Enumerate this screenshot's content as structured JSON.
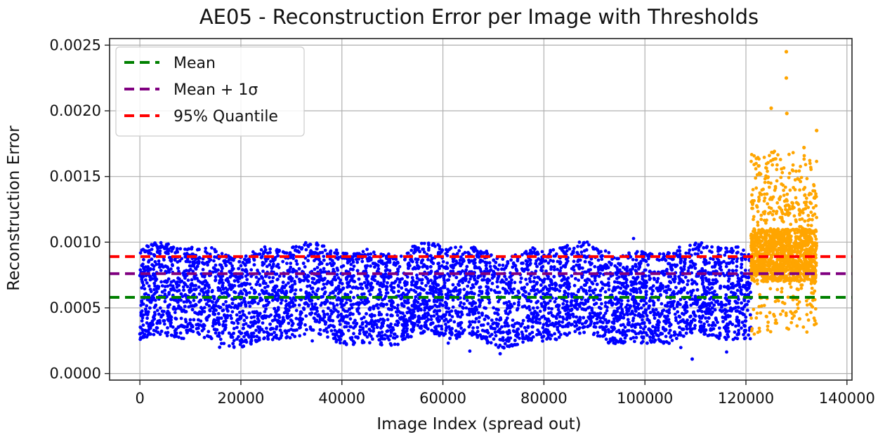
{
  "chart_data": {
    "type": "scatter",
    "title": "AE05 - Reconstruction Error per Image with Thresholds",
    "xlabel": "Image Index (spread out)",
    "ylabel": "Reconstruction Error",
    "xlim": [
      -6000,
      141000
    ],
    "ylim": [
      -5e-05,
      0.00255
    ],
    "x_ticks": [
      0,
      20000,
      40000,
      60000,
      80000,
      100000,
      120000,
      140000
    ],
    "x_tick_labels": [
      "0",
      "20000",
      "40000",
      "60000",
      "80000",
      "100000",
      "120000",
      "140000"
    ],
    "y_ticks": [
      0.0,
      0.0005,
      0.001,
      0.0015,
      0.002,
      0.0025
    ],
    "y_tick_labels": [
      "0.0000",
      "0.0005",
      "0.0010",
      "0.0015",
      "0.0020",
      "0.0025"
    ],
    "grid": true,
    "legend_position": "top-left",
    "series": [
      {
        "name": "",
        "color": "#0000ff",
        "x_range": [
          0,
          121000
        ],
        "y_center": 0.00058,
        "y_typical_range": [
          0.00025,
          0.00095
        ],
        "y_min": 0.00011,
        "y_max": 0.00104
      },
      {
        "name": "",
        "color": "#ffa500",
        "x_range": [
          121000,
          134000
        ],
        "y_center": 0.00085,
        "y_typical_range": [
          0.0003,
          0.0014
        ],
        "y_min": 0.00025,
        "y_max": 0.00245,
        "sample_points": [
          {
            "x": 128000,
            "y": 0.00245
          },
          {
            "x": 128000,
            "y": 0.00225
          },
          {
            "x": 125000,
            "y": 0.00202
          },
          {
            "x": 128100,
            "y": 0.00198
          },
          {
            "x": 134000,
            "y": 0.00185
          },
          {
            "x": 122500,
            "y": 0.00158
          },
          {
            "x": 131500,
            "y": 0.00172
          }
        ]
      }
    ],
    "thresholds": [
      {
        "name": "Mean",
        "value": 0.00058,
        "color": "#008000"
      },
      {
        "name": "Mean + 1σ",
        "value": 0.00076,
        "color": "#800080"
      },
      {
        "name": "95% Quantile",
        "value": 0.00089,
        "color": "#ff0000"
      }
    ]
  }
}
